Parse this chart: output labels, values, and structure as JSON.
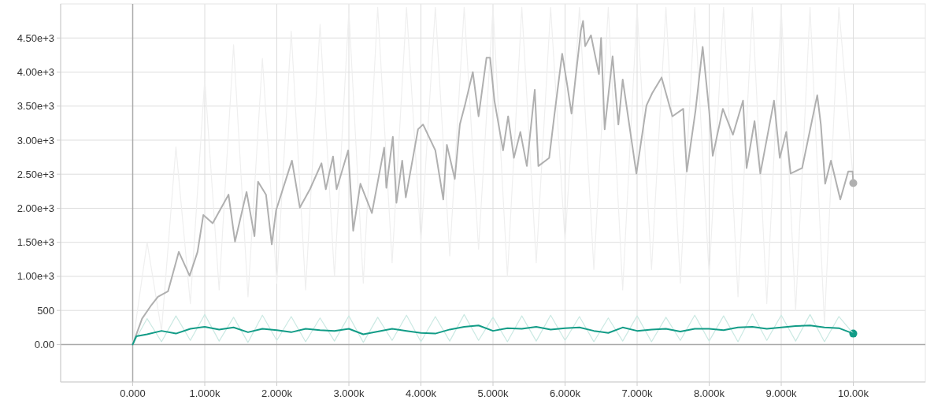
{
  "chart_data": {
    "type": "line",
    "xlim": [
      -1000,
      11000
    ],
    "ylim": [
      -550,
      5000
    ],
    "xticks": [
      {
        "value": 0,
        "label": "0.000"
      },
      {
        "value": 1000,
        "label": "1.000k"
      },
      {
        "value": 2000,
        "label": "2.000k"
      },
      {
        "value": 3000,
        "label": "3.000k"
      },
      {
        "value": 4000,
        "label": "4.000k"
      },
      {
        "value": 5000,
        "label": "5.000k"
      },
      {
        "value": 6000,
        "label": "6.000k"
      },
      {
        "value": 7000,
        "label": "7.000k"
      },
      {
        "value": 8000,
        "label": "8.000k"
      },
      {
        "value": 9000,
        "label": "9.000k"
      },
      {
        "value": 10000,
        "label": "10.00k"
      }
    ],
    "yticks": [
      {
        "value": 0,
        "label": "0.00"
      },
      500,
      {
        "value": 1000,
        "label": "1.00e+3"
      },
      {
        "value": 1500,
        "label": "1.50e+3"
      },
      {
        "value": 2000,
        "label": "2.00e+3"
      },
      {
        "value": 2500,
        "label": "2.50e+3"
      },
      {
        "value": 3000,
        "label": "3.00e+3"
      },
      {
        "value": 3500,
        "label": "3.50e+3"
      },
      {
        "value": 4000,
        "label": "4.00e+3"
      },
      {
        "value": 4500,
        "label": "4.50e+3"
      }
    ],
    "grid": true,
    "series": [
      {
        "color": "#efefef",
        "x": [
          0,
          200,
          400,
          600,
          800,
          1000,
          1200,
          1400,
          1600,
          1800,
          2000,
          2200,
          2400,
          2600,
          2800,
          3000,
          3200,
          3400,
          3600,
          3800,
          4000,
          4200,
          4400,
          4600,
          4800,
          5000,
          5200,
          5400,
          5600,
          5800,
          6000,
          6200,
          6400,
          6600,
          6800,
          7000,
          7200,
          7400,
          7600,
          7800,
          8000,
          8200,
          8400,
          8600,
          8800,
          9000,
          9200,
          9400,
          9600,
          9800,
          10000
        ],
        "values": [
          0,
          1500,
          200,
          2900,
          600,
          3900,
          800,
          4400,
          700,
          4200,
          900,
          4600,
          800,
          4700,
          1000,
          4900,
          900,
          4950,
          1200,
          4950,
          1500,
          4950,
          1300,
          4950,
          1400,
          4950,
          1000,
          4950,
          1200,
          4950,
          1500,
          4950,
          1100,
          4950,
          800,
          4950,
          1100,
          4950,
          900,
          4950,
          1000,
          4950,
          700,
          4950,
          600,
          4950,
          500,
          4950,
          300,
          4950,
          2400
        ]
      },
      {
        "color": "#cbe9e3",
        "x": [
          0,
          200,
          400,
          600,
          800,
          1000,
          1200,
          1400,
          1600,
          1800,
          2000,
          2200,
          2400,
          2600,
          2800,
          3000,
          3200,
          3400,
          3600,
          3800,
          4000,
          4200,
          4400,
          4600,
          4800,
          5000,
          5200,
          5400,
          5600,
          5800,
          6000,
          6200,
          6400,
          6600,
          6800,
          7000,
          7200,
          7400,
          7600,
          7800,
          8000,
          8200,
          8400,
          8600,
          8800,
          9000,
          9200,
          9400,
          9600,
          9800,
          10000
        ],
        "values": [
          0,
          380,
          40,
          420,
          60,
          440,
          50,
          400,
          30,
          430,
          60,
          410,
          40,
          390,
          50,
          420,
          30,
          400,
          60,
          430,
          40,
          410,
          50,
          440,
          60,
          400,
          40,
          420,
          50,
          430,
          60,
          410,
          40,
          390,
          50,
          420,
          40,
          400,
          60,
          430,
          50,
          420,
          40,
          450,
          60,
          430,
          50,
          440,
          40,
          410,
          160
        ]
      },
      {
        "color": "#b0b0b0",
        "x": [
          0,
          130,
          260,
          350,
          490,
          640,
          790,
          900,
          980,
          1110,
          1330,
          1420,
          1580,
          1690,
          1740,
          1850,
          1930,
          1990,
          2210,
          2320,
          2460,
          2620,
          2680,
          2780,
          2830,
          2990,
          3060,
          3160,
          3320,
          3490,
          3520,
          3610,
          3660,
          3740,
          3790,
          3960,
          4030,
          4200,
          4310,
          4360,
          4470,
          4540,
          4610,
          4720,
          4800,
          4910,
          4960,
          5020,
          5140,
          5210,
          5290,
          5380,
          5470,
          5580,
          5630,
          5780,
          5850,
          5960,
          6030,
          6090,
          6220,
          6250,
          6280,
          6360,
          6470,
          6500,
          6550,
          6660,
          6740,
          6800,
          6990,
          7130,
          7210,
          7340,
          7490,
          7640,
          7690,
          7810,
          7910,
          8000,
          8050,
          8190,
          8330,
          8470,
          8520,
          8630,
          8710,
          8900,
          8980,
          9070,
          9130,
          9290,
          9500,
          9550,
          9610,
          9690,
          9820,
          9930,
          9990,
          10000
        ],
        "values": [
          0,
          380,
          580,
          700,
          780,
          1360,
          1010,
          1360,
          1900,
          1780,
          2200,
          1510,
          2240,
          1590,
          2390,
          2200,
          1470,
          1970,
          2700,
          2010,
          2280,
          2660,
          2280,
          2760,
          2280,
          2850,
          1670,
          2360,
          1930,
          2890,
          2300,
          3050,
          2080,
          2700,
          2160,
          3160,
          3230,
          2850,
          2130,
          2930,
          2430,
          3230,
          3510,
          4000,
          3350,
          4210,
          4210,
          3580,
          2850,
          3350,
          2740,
          3120,
          2620,
          3740,
          2620,
          2740,
          3350,
          4270,
          3810,
          3390,
          4610,
          4750,
          4380,
          4540,
          3970,
          4500,
          3160,
          4230,
          3230,
          3890,
          2510,
          3510,
          3690,
          3920,
          3350,
          3460,
          2540,
          3430,
          4370,
          3430,
          2770,
          3460,
          3080,
          3580,
          2590,
          3280,
          2510,
          3580,
          2740,
          3120,
          2510,
          2590,
          3660,
          3230,
          2360,
          2700,
          2130,
          2540,
          2540,
          2370
        ]
      },
      {
        "color": "#129c87",
        "x": [
          0,
          50,
          200,
          400,
          600,
          800,
          1000,
          1200,
          1400,
          1600,
          1800,
          2000,
          2200,
          2400,
          2600,
          2800,
          3000,
          3200,
          3400,
          3600,
          3800,
          4000,
          4200,
          4400,
          4600,
          4800,
          5000,
          5200,
          5400,
          5600,
          5800,
          6000,
          6200,
          6400,
          6600,
          6800,
          7000,
          7200,
          7400,
          7600,
          7800,
          8000,
          8200,
          8400,
          8600,
          8800,
          9000,
          9200,
          9400,
          9600,
          9800,
          10000
        ],
        "values": [
          0,
          120,
          150,
          200,
          160,
          230,
          260,
          220,
          250,
          180,
          230,
          210,
          180,
          230,
          210,
          200,
          230,
          150,
          190,
          230,
          200,
          170,
          160,
          220,
          260,
          280,
          200,
          240,
          230,
          260,
          220,
          240,
          250,
          200,
          170,
          250,
          200,
          220,
          230,
          190,
          230,
          230,
          210,
          250,
          260,
          230,
          250,
          270,
          280,
          250,
          240,
          160
        ]
      }
    ]
  }
}
